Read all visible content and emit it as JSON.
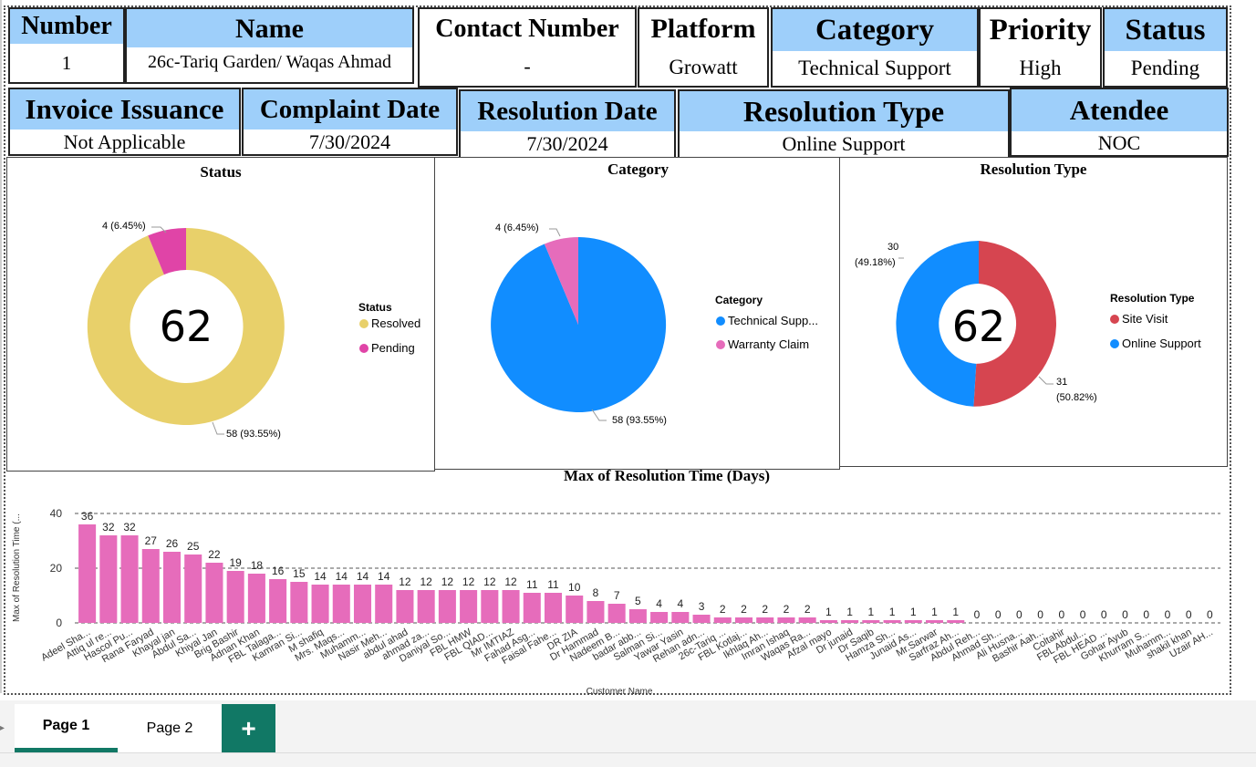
{
  "cards_row1": [
    {
      "header": "Number",
      "value": "1"
    },
    {
      "header": "Name",
      "value": "26c-Tariq Garden/ Waqas Ahmad"
    },
    {
      "header": "Contact Number",
      "value": "-"
    },
    {
      "header": "Platform",
      "value": "Growatt"
    },
    {
      "header": "Category",
      "value": "Technical Support"
    },
    {
      "header": "Priority",
      "value": "High"
    },
    {
      "header": "Status",
      "value": "Pending"
    }
  ],
  "cards_row2": [
    {
      "header": "Invoice Issuance",
      "value": "Not Applicable"
    },
    {
      "header": "Complaint Date",
      "value": "7/30/2024"
    },
    {
      "header": "Resolution Date",
      "value": "7/30/2024"
    },
    {
      "header": "Resolution Type",
      "value": "Online Support"
    },
    {
      "header": "Atendee",
      "value": "NOC"
    }
  ],
  "status_chart": {
    "title": "Status",
    "center_value": "62",
    "legend_title": "Status",
    "legend": [
      {
        "label": "Resolved",
        "color": "#e8d06a"
      },
      {
        "label": "Pending",
        "color": "#e044a7"
      }
    ],
    "labels": {
      "pending": "4 (6.45%)",
      "resolved": "58 (93.55%)"
    }
  },
  "category_chart": {
    "title": "Category",
    "legend_title": "Category",
    "legend": [
      {
        "label": "Technical Supp...",
        "color": "#118dff"
      },
      {
        "label": "Warranty Claim",
        "color": "#e66cbb"
      }
    ],
    "labels": {
      "warranty": "4 (6.45%)",
      "technical": "58 (93.55%)"
    }
  },
  "resolution_chart": {
    "title": "Resolution Type",
    "center_value": "62",
    "legend_title": "Resolution Type",
    "legend": [
      {
        "label": "Site Visit",
        "color": "#d64550"
      },
      {
        "label": "Online Support",
        "color": "#118dff"
      }
    ],
    "labels": {
      "online_count": "30",
      "online_pct": "(49.18%)",
      "site_count": "31",
      "site_pct": "(50.82%)"
    }
  },
  "chart_data": [
    {
      "type": "pie",
      "title": "Status",
      "categories": [
        "Resolved",
        "Pending"
      ],
      "values": [
        58,
        4
      ],
      "colors": [
        "#e8d06a",
        "#e044a7"
      ],
      "donut": true,
      "center_label": "62"
    },
    {
      "type": "pie",
      "title": "Category",
      "categories": [
        "Technical Supp...",
        "Warranty Claim"
      ],
      "values": [
        58,
        4
      ],
      "colors": [
        "#118dff",
        "#e66cbb"
      ],
      "donut": false
    },
    {
      "type": "pie",
      "title": "Resolution Type",
      "categories": [
        "Site Visit",
        "Online Support"
      ],
      "values": [
        31,
        30
      ],
      "colors": [
        "#d64550",
        "#118dff"
      ],
      "donut": true,
      "center_label": "62"
    },
    {
      "type": "bar",
      "title": "Max of Resolution Time (Days)",
      "xlabel": "Customer Name",
      "ylabel": "Max of Resolution Time (...",
      "ylim": [
        0,
        40
      ],
      "yticks": [
        0,
        20,
        40
      ],
      "color": "#e66cbb",
      "categories": [
        "Adeel Sha...",
        "Attiq ul re...",
        "Hascol Pu...",
        "Rana Faryad",
        "Khayal jan",
        "Abdul Sa...",
        "Khiyal Jan",
        "Brig Bashir",
        "Adnan Khan",
        "FBL Talaga...",
        "Kamran Si...",
        "M shafiq",
        "Mrs. Maqs...",
        "Muhamm...",
        "Nasir Meh...",
        "abdul ahad",
        "ahmad za...",
        "Daniyal So...",
        "FBL HMW",
        "FBL QIAD...",
        "Mr IMTIAZ",
        "Fahad Asg...",
        "Faisal Fahe...",
        "DR ZIA",
        "Dr Hammad",
        "Nadeem B...",
        "badar abb...",
        "Salman Si...",
        "Yawar Yasin",
        "Rehan adn...",
        "26c-Tariq ...",
        "FBL Kotlaj...",
        "Ikhlaq Ah...",
        "Imran Ishaq",
        "Waqas Ra...",
        "Afzal mayo",
        "Dr junaid",
        "Dr Saqib",
        "Hamza Sh...",
        "Junaid As...",
        "Mr.Sarwar",
        "Sarfraz Ah...",
        "Abdul Reh...",
        "Ahmad Sh...",
        "Ali Husna...",
        "Bashir Aah...",
        "Coltahir",
        "FBL Abdul...",
        "FBL HEAD ...",
        "Gohar Ayub",
        "Khurram S...",
        "Muhamm...",
        "shakil khan",
        "Uzair AH..."
      ],
      "values": [
        36,
        32,
        32,
        27,
        26,
        25,
        22,
        19,
        18,
        16,
        15,
        14,
        14,
        14,
        14,
        12,
        12,
        12,
        12,
        12,
        12,
        11,
        11,
        10,
        8,
        7,
        5,
        4,
        4,
        3,
        2,
        2,
        2,
        2,
        2,
        1,
        1,
        1,
        1,
        1,
        1,
        1,
        0,
        0,
        0,
        0,
        0,
        0,
        0,
        0,
        0,
        0,
        0,
        0
      ]
    }
  ],
  "tabs": [
    {
      "label": "Page 1",
      "active": true
    },
    {
      "label": "Page 2",
      "active": false
    }
  ],
  "add_tab_label": "+"
}
